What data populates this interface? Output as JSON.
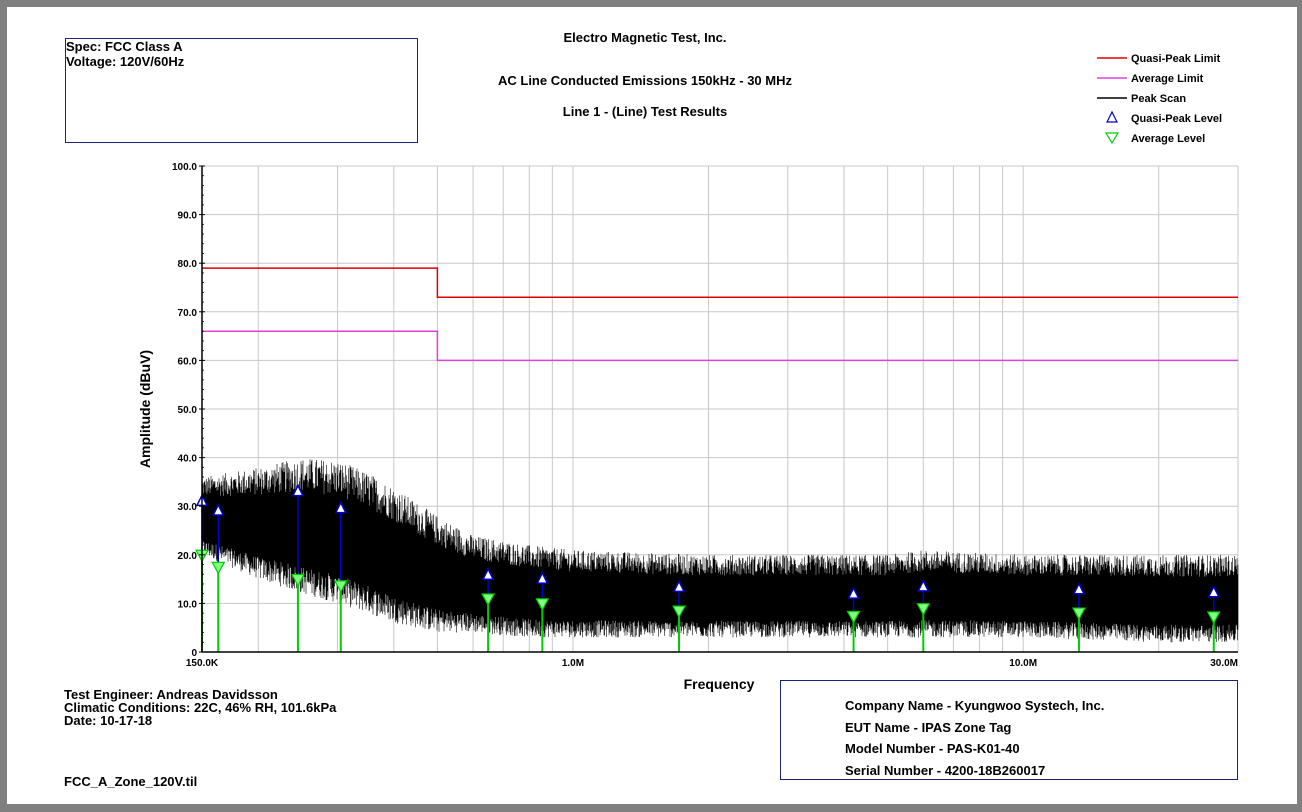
{
  "header": {
    "lab_name": "Electro Magnetic Test, Inc.",
    "test_title": "AC Line Conducted Emissions 150kHz - 30 MHz",
    "line_title": "Line 1 - (Line) Test Results"
  },
  "spec_box": {
    "spec": "Spec: FCC Class A",
    "voltage": "Voltage: 120V/60Hz"
  },
  "footer_left": {
    "engineer": "Test Engineer: Andreas Davidsson",
    "climate": "Climatic Conditions: 22C, 46% RH, 101.6kPa",
    "date": "Date: 10-17-18",
    "file": "FCC_A_Zone_120V.til"
  },
  "company_box": {
    "company": "Company Name - Kyungwoo Systech, Inc.",
    "eut": "EUT Name - IPAS Zone Tag",
    "model": "Model Number - PAS-K01-40",
    "serial": "Serial Number - 4200-18B260017"
  },
  "colors": {
    "qp_limit": "#e00000",
    "avg_limit": "#e040e0",
    "peak_scan": "#000000",
    "qp_marker": "#0000cc",
    "avg_marker": "#00cc00",
    "frame": "#1a237e",
    "background": "#808080"
  },
  "chart_data": {
    "type": "line",
    "xscale": "log",
    "xlabel": "Frequency",
    "ylabel": "Amplitude (dBuV)",
    "xlim": [
      0.15,
      30
    ],
    "ylim": [
      0,
      100
    ],
    "grid": true,
    "legend_position": "top-right",
    "x_tick_labels": [
      {
        "value": 0.15,
        "label": "150.0K"
      },
      {
        "value": 1,
        "label": "1.0M"
      },
      {
        "value": 10,
        "label": "10.0M"
      },
      {
        "value": 30,
        "label": "30.0M"
      }
    ],
    "y_tick_labels": [
      "0",
      "10.0",
      "20.0",
      "30.0",
      "40.0",
      "50.0",
      "60.0",
      "70.0",
      "80.0",
      "90.0",
      "100.0"
    ],
    "series": [
      {
        "name": "Quasi-Peak Limit",
        "style": "line",
        "x": [
          0.15,
          0.5,
          0.5,
          30
        ],
        "y": [
          79,
          79,
          73,
          73
        ]
      },
      {
        "name": "Average Limit",
        "style": "line",
        "x": [
          0.15,
          0.5,
          0.5,
          30
        ],
        "y": [
          66,
          66,
          60,
          60
        ]
      },
      {
        "name": "Peak Scan",
        "style": "noise-band",
        "envelope": {
          "x": [
            0.15,
            0.2,
            0.25,
            0.3,
            0.35,
            0.4,
            0.5,
            0.6,
            0.8,
            1.0,
            2.0,
            5.0,
            6.0,
            10.0,
            20.0,
            30.0
          ],
          "upper": [
            36,
            38,
            40,
            39.5,
            37,
            34,
            28,
            24,
            22,
            21,
            20,
            20,
            21,
            20,
            20,
            20
          ],
          "lower": [
            20,
            15,
            12,
            10,
            8,
            6,
            4,
            4,
            3,
            3,
            3,
            3,
            3,
            3,
            2,
            2
          ]
        }
      },
      {
        "name": "Quasi-Peak Level",
        "style": "marker-up",
        "x": [
          0.15,
          0.163,
          0.245,
          0.305,
          0.648,
          0.855,
          1.72,
          4.2,
          6.0,
          13.3,
          26.5
        ],
        "y": [
          31.0,
          29.0,
          33.0,
          29.5,
          15.8,
          15.0,
          13.3,
          11.9,
          13.4,
          12.8,
          12.2
        ]
      },
      {
        "name": "Average Level",
        "style": "marker-down",
        "x": [
          0.15,
          0.163,
          0.245,
          0.305,
          0.648,
          0.855,
          1.72,
          4.2,
          6.0,
          13.3,
          26.5
        ],
        "y": [
          19.5,
          17.0,
          14.5,
          13.2,
          10.5,
          9.5,
          8.0,
          6.9,
          8.5,
          7.6,
          6.8
        ]
      }
    ]
  }
}
